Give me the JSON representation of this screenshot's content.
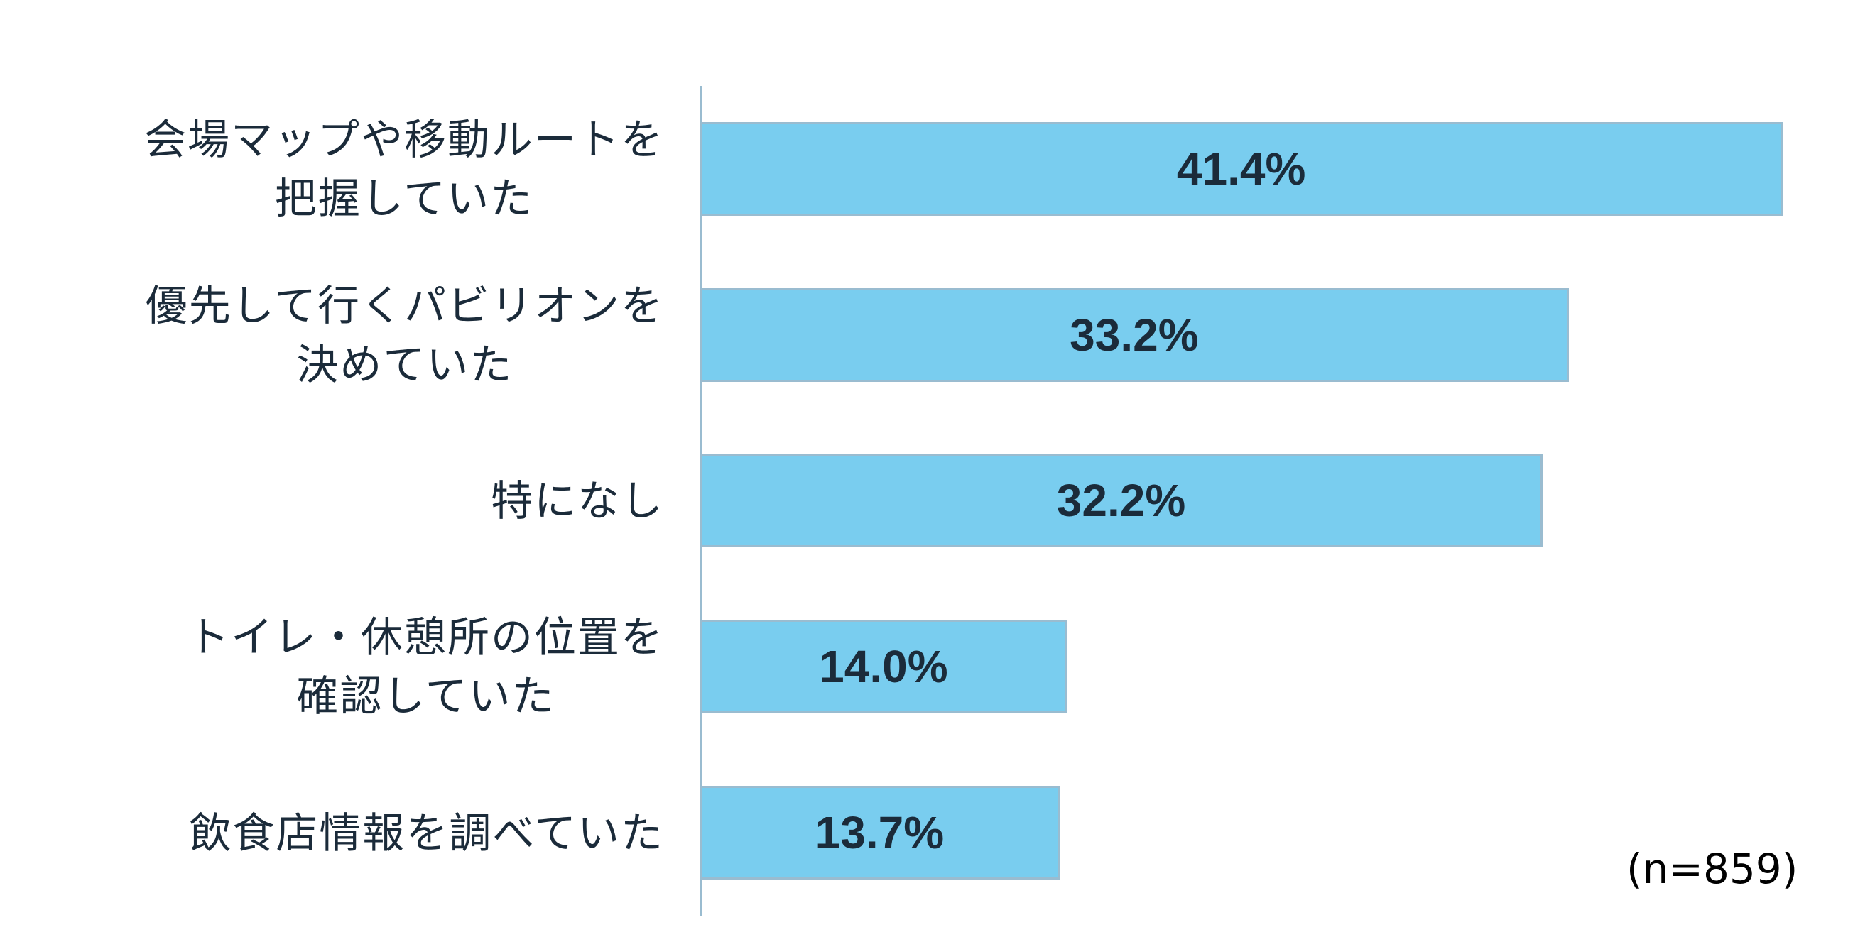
{
  "chart_data": {
    "type": "bar",
    "orientation": "horizontal",
    "title": "",
    "xlabel": "",
    "ylabel": "",
    "categories": [
      "会場マップや移動ルートを\n把握していた",
      "優先して行くパビリオンを\n決めていた",
      "特になし",
      "トイレ・休憩所の位置を\n確認していた",
      "飲食店情報を調べていた"
    ],
    "values": [
      41.4,
      33.2,
      32.2,
      14.0,
      13.7
    ],
    "value_labels": [
      "41.4%",
      "33.2%",
      "32.2%",
      "14.0%",
      "13.7%"
    ],
    "unit": "%",
    "xlim": [
      0,
      45
    ],
    "grid": false,
    "legend": null,
    "annotations": [
      "(n=859)"
    ],
    "colors": {
      "bar_fill": "#79CDEF",
      "bar_border": "#9ABCD0",
      "axis": "#9ABCD0",
      "text": "#1B2B3A"
    }
  },
  "rows": [
    {
      "label": "会場マップや移動ルートを\n把握していた",
      "value": 41.4,
      "value_label": "41.4%"
    },
    {
      "label": "優先して行くパビリオンを\n決めていた",
      "value": 33.2,
      "value_label": "33.2%"
    },
    {
      "label": "特になし",
      "value": 32.2,
      "value_label": "32.2%"
    },
    {
      "label": "トイレ・休憩所の位置を\n確認していた",
      "value": 14.0,
      "value_label": "14.0%"
    },
    {
      "label": "飲食店情報を調べていた",
      "value": 13.7,
      "value_label": "13.7%"
    }
  ],
  "sample_note": "(n=859)"
}
